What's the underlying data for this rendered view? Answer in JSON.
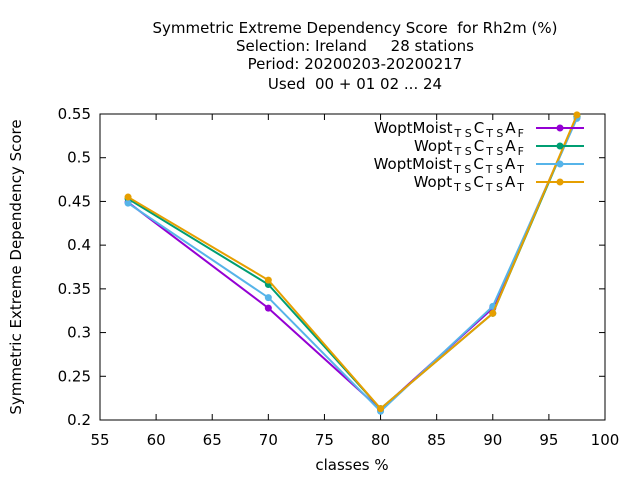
{
  "title_lines": [
    "Symmetric Extreme Dependency Score  for Rh2m (%)",
    "Selection: Ireland     28 stations",
    "Period: 20200203-20200217",
    "Used  00 + 01 02 ... 24"
  ],
  "chart_data": {
    "type": "line",
    "xlabel": "classes %",
    "ylabel": "Symmetric Extreme Dependency Score",
    "xlim": [
      55,
      100
    ],
    "ylim": [
      0.2,
      0.55
    ],
    "xticks": [
      55,
      60,
      65,
      70,
      75,
      80,
      85,
      90,
      95,
      100
    ],
    "yticks": [
      0.2,
      0.25,
      0.3,
      0.35,
      0.4,
      0.45,
      0.5,
      0.55
    ],
    "grid": false,
    "legend_position": "top-right",
    "x": [
      57.5,
      70,
      80,
      90,
      97.5
    ],
    "series": [
      {
        "label_main": "WoptMoist",
        "label_sub1": "T S",
        "label_mid": "C",
        "label_sub2": "T S",
        "label_a": "A",
        "label_sub3": "F",
        "color": "#9400d3",
        "values": [
          0.449,
          0.328,
          0.212,
          0.328,
          0.546
        ]
      },
      {
        "label_main": "Wopt",
        "label_sub1": "T S",
        "label_mid": "C",
        "label_sub2": "T S",
        "label_a": "A",
        "label_sub3": "F",
        "color": "#009e73",
        "values": [
          0.453,
          0.355,
          0.213,
          0.322,
          0.547
        ]
      },
      {
        "label_main": "WoptMoist",
        "label_sub1": "T S",
        "label_mid": "C",
        "label_sub2": "T S",
        "label_a": "A",
        "label_sub3": "T",
        "color": "#56b4e9",
        "values": [
          0.448,
          0.34,
          0.21,
          0.33,
          0.545
        ]
      },
      {
        "label_main": "Wopt",
        "label_sub1": "T S",
        "label_mid": "C",
        "label_sub2": "T S",
        "label_a": "A",
        "label_sub3": "T",
        "color": "#e69f00",
        "values": [
          0.455,
          0.36,
          0.213,
          0.322,
          0.549
        ]
      }
    ]
  }
}
